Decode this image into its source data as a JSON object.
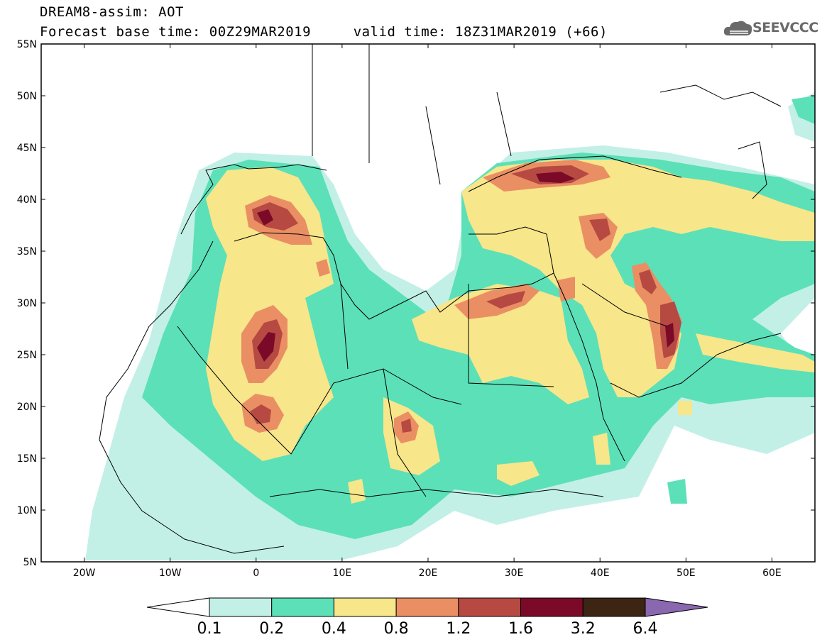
{
  "header": {
    "title_line1": "DREAM8-assim: AOT",
    "title_line2": "Forecast base time: 00Z29MAR2019     valid time: 18Z31MAR2019 (+66)",
    "logo_text": "SEEVCCC"
  },
  "map": {
    "icon": "dust-aot-map",
    "lon_range": [
      -25,
      65
    ],
    "lat_range": [
      5,
      55
    ],
    "lat_ticks": [
      {
        "value": 55,
        "label": "55N"
      },
      {
        "value": 50,
        "label": "50N"
      },
      {
        "value": 45,
        "label": "45N"
      },
      {
        "value": 40,
        "label": "40N"
      },
      {
        "value": 35,
        "label": "35N"
      },
      {
        "value": 30,
        "label": "30N"
      },
      {
        "value": 25,
        "label": "25N"
      },
      {
        "value": 20,
        "label": "20N"
      },
      {
        "value": 15,
        "label": "15N"
      },
      {
        "value": 10,
        "label": "10N"
      },
      {
        "value": 5,
        "label": "5N"
      }
    ],
    "lon_ticks": [
      {
        "value": -20,
        "label": "20W"
      },
      {
        "value": -10,
        "label": "10W"
      },
      {
        "value": 0,
        "label": "0"
      },
      {
        "value": 10,
        "label": "10E"
      },
      {
        "value": 20,
        "label": "20E"
      },
      {
        "value": 30,
        "label": "30E"
      },
      {
        "value": 40,
        "label": "40E"
      },
      {
        "value": 50,
        "label": "50E"
      },
      {
        "value": 60,
        "label": "60E"
      }
    ]
  },
  "colorbar": {
    "colors": [
      "#ffffff",
      "#c2f0e6",
      "#5ce0b8",
      "#f7e68a",
      "#ea8f64",
      "#b64a42",
      "#7a0a28",
      "#3d2514",
      "#8a68b0"
    ],
    "labels": [
      "0.1",
      "0.2",
      "0.4",
      "0.8",
      "1.2",
      "1.6",
      "3.2",
      "6.4"
    ]
  }
}
